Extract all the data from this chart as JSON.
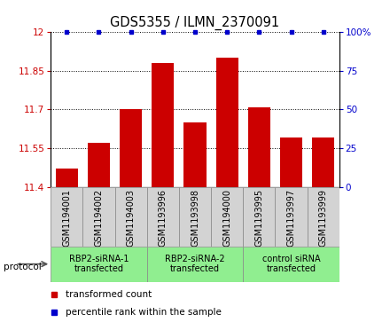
{
  "title": "GDS5355 / ILMN_2370091",
  "samples": [
    "GSM1194001",
    "GSM1194002",
    "GSM1194003",
    "GSM1193996",
    "GSM1193998",
    "GSM1194000",
    "GSM1193995",
    "GSM1193997",
    "GSM1193999"
  ],
  "bar_values": [
    11.47,
    11.57,
    11.7,
    11.88,
    11.65,
    11.9,
    11.71,
    11.59,
    11.59
  ],
  "percentile_values": [
    100,
    100,
    100,
    100,
    100,
    100,
    100,
    100,
    100
  ],
  "bar_color": "#cc0000",
  "dot_color": "#0000cc",
  "ylim_left": [
    11.4,
    12.0
  ],
  "ylim_right": [
    0,
    100
  ],
  "yticks_left": [
    11.4,
    11.55,
    11.7,
    11.85,
    12.0
  ],
  "yticks_right": [
    0,
    25,
    50,
    75,
    100
  ],
  "ytick_labels_left": [
    "11.4",
    "11.55",
    "11.7",
    "11.85",
    "12"
  ],
  "ytick_labels_right": [
    "0",
    "25",
    "50",
    "75",
    "100%"
  ],
  "groups": [
    {
      "label": "RBP2-siRNA-1\ntransfected",
      "start": 0,
      "end": 3,
      "color": "#90ee90"
    },
    {
      "label": "RBP2-siRNA-2\ntransfected",
      "start": 3,
      "end": 6,
      "color": "#90ee90"
    },
    {
      "label": "control siRNA\ntransfected",
      "start": 6,
      "end": 9,
      "color": "#90ee90"
    }
  ],
  "legend_items": [
    {
      "color": "#cc0000",
      "label": "transformed count"
    },
    {
      "color": "#0000cc",
      "label": "percentile rank within the sample"
    }
  ],
  "protocol_label": "protocol",
  "background_color": "#ffffff",
  "bar_bottom": 11.4,
  "title_fontsize": 10.5,
  "tick_fontsize": 7.5,
  "label_fontsize": 7.5
}
